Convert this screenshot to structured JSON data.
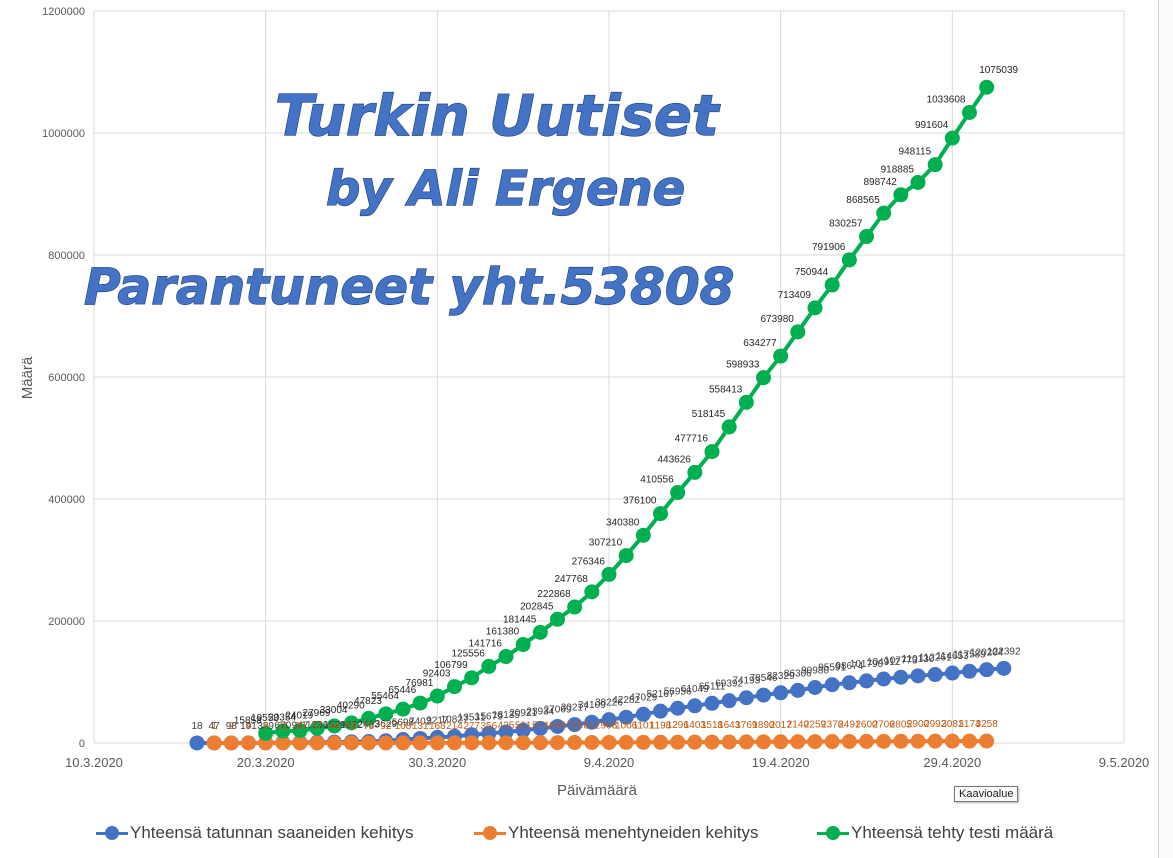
{
  "chart_data": {
    "type": "line",
    "title": "",
    "xlabel": "Päivämäärä",
    "ylabel": "Määrä",
    "ylim": [
      0,
      1200000
    ],
    "yticks": [
      0,
      200000,
      400000,
      600000,
      800000,
      1000000,
      1200000
    ],
    "xticks": [
      "10.3.2020",
      "20.3.2020",
      "30.3.2020",
      "9.4.2020",
      "19.4.2020",
      "29.4.2020",
      "9.5.2020"
    ],
    "x_start": "2020-03-10",
    "x_end": "2020-05-09",
    "grid": true,
    "legend_position": "bottom",
    "series": [
      {
        "name": "Yhteensä tatunnan saaneiden kehitys",
        "color": "#4472C4",
        "start": "2020-03-16",
        "values": [
          18,
          47,
          98,
          191,
          359,
          670,
          947,
          1236,
          1529,
          1872,
          2433,
          3629,
          5698,
          7402,
          9217,
          10827,
          13531,
          15679,
          18135,
          20921,
          23934,
          27069,
          30217,
          34109,
          38226,
          42282,
          47029,
          52167,
          56956,
          61049,
          65111,
          69392,
          74193,
          78546,
          82329,
          86306,
          90980,
          95591,
          98674,
          101790,
          104912,
          107773,
          110130,
          112261,
          114653,
          117589,
          120204,
          122392
        ]
      },
      {
        "name": "Yhteensä menehtyneiden kehitys",
        "color": "#ED7D31",
        "start": "2020-03-17",
        "values": [
          1,
          2,
          4,
          9,
          21,
          30,
          37,
          44,
          59,
          75,
          92,
          108,
          131,
          168,
          214,
          277,
          356,
          425,
          501,
          574,
          649,
          725,
          812,
          908,
          1006,
          1101,
          1198,
          1296,
          1403,
          1518,
          1643,
          1769,
          1890,
          2017,
          2140,
          2259,
          2376,
          2491,
          2600,
          2706,
          2805,
          2900,
          2992,
          3081,
          3174,
          3258
        ]
      },
      {
        "name": "Yhteensä tehty testi määrä",
        "color": "#00B050",
        "start": "2020-03-20",
        "values": [
          15858,
          19553,
          20354,
          24019,
          27969,
          33004,
          40290,
          47823,
          55464,
          65446,
          76981,
          92403,
          106799,
          125556,
          141716,
          161380,
          181445,
          202845,
          222868,
          247768,
          276346,
          307210,
          340380,
          376100,
          410556,
          443626,
          477716,
          518145,
          558413,
          598933,
          634277,
          673980,
          713409,
          750944,
          791906,
          830257,
          868565,
          898742,
          918885,
          948115,
          991604,
          1033608,
          1075039
        ]
      }
    ]
  },
  "watermark": {
    "line1": "Turkin Uutiset",
    "line2": "by Ali Ergene",
    "line3": "Parantuneet yht.53808"
  },
  "tooltip": "Kaavioalue"
}
